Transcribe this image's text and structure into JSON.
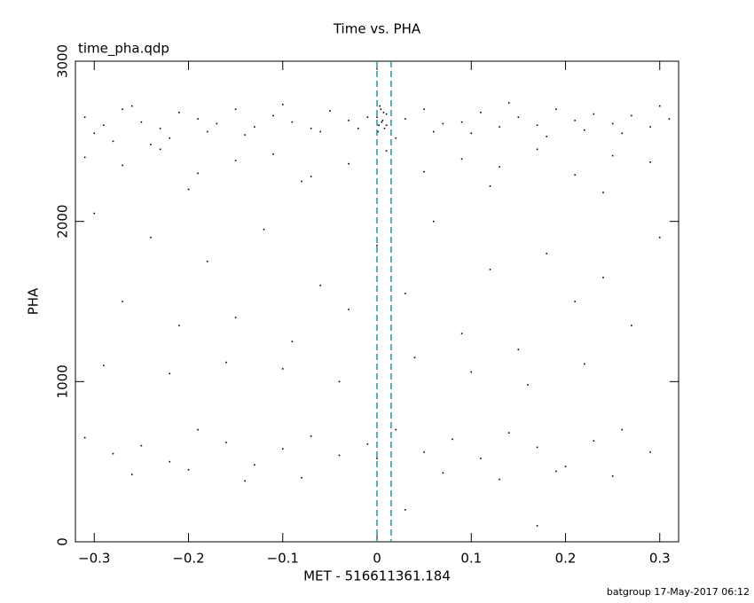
{
  "chart_data": {
    "type": "scatter",
    "title": "Time vs. PHA",
    "subtitle": "time_pha.qdp",
    "x_label": "MET - 516611361.184",
    "y_label": "PHA",
    "footer": "batgroup 17-May-2017 06:12",
    "color": "#000000",
    "vline_color": "#1a9aa6",
    "vlines": [
      0,
      0.015
    ],
    "xlim": [
      -0.32,
      0.32
    ],
    "ylim": [
      0,
      3000
    ],
    "xticks": [
      {
        "value": -0.3,
        "label": "−0.3"
      },
      {
        "value": -0.2,
        "label": "−0.2"
      },
      {
        "value": -0.1,
        "label": "−0.1"
      },
      0,
      0.1,
      0.2,
      0.3
    ],
    "yticks": [
      0,
      1000,
      2000,
      3000
    ],
    "x": [
      -0.31,
      -0.29,
      -0.27,
      -0.25,
      -0.23,
      -0.21,
      -0.19,
      -0.17,
      -0.15,
      -0.13,
      -0.11,
      -0.09,
      -0.07,
      -0.05,
      -0.03,
      -0.01,
      0.01,
      0.03,
      0.05,
      0.07,
      0.09,
      0.11,
      0.13,
      0.15,
      0.17,
      0.19,
      0.21,
      0.23,
      0.25,
      0.27,
      0.29,
      0.31,
      -0.3,
      -0.26,
      -0.22,
      -0.18,
      -0.14,
      -0.1,
      -0.06,
      -0.02,
      0.02,
      0.06,
      0.1,
      0.14,
      0.18,
      0.22,
      0.26,
      0.3,
      -0.28,
      -0.24,
      0.0,
      0.002,
      0.004,
      0.006,
      0.008,
      0.01,
      0.001,
      0.003,
      0.005,
      0.007,
      -0.31,
      -0.27,
      -0.23,
      -0.19,
      -0.15,
      -0.11,
      -0.07,
      -0.03,
      0.01,
      0.05,
      0.09,
      0.13,
      0.17,
      0.21,
      0.25,
      0.29,
      -0.2,
      -0.08,
      0.12,
      0.24,
      -0.3,
      -0.24,
      -0.18,
      -0.12,
      -0.06,
      0.0,
      0.06,
      0.12,
      0.18,
      0.24,
      0.3,
      -0.27,
      -0.21,
      -0.15,
      -0.09,
      -0.03,
      0.03,
      0.09,
      0.15,
      0.21,
      0.27,
      -0.29,
      -0.22,
      -0.16,
      -0.1,
      -0.04,
      0.04,
      0.1,
      0.16,
      0.22,
      -0.31,
      -0.28,
      -0.25,
      -0.22,
      -0.19,
      -0.16,
      -0.13,
      -0.1,
      -0.07,
      -0.04,
      -0.01,
      0.02,
      0.05,
      0.08,
      0.11,
      0.14,
      0.17,
      0.2,
      0.23,
      0.26,
      0.29,
      -0.26,
      -0.2,
      -0.14,
      -0.08,
      0.0,
      0.07,
      0.13,
      0.19,
      0.25,
      0.03,
      0.17
    ],
    "values": [
      2650,
      2600,
      2700,
      2620,
      2580,
      2680,
      2640,
      2610,
      2700,
      2590,
      2660,
      2620,
      2580,
      2690,
      2630,
      2650,
      2600,
      2640,
      2700,
      2610,
      2620,
      2680,
      2590,
      2650,
      2600,
      2700,
      2630,
      2670,
      2610,
      2660,
      2590,
      2640,
      2550,
      2720,
      2520,
      2560,
      2540,
      2730,
      2560,
      2580,
      2520,
      2560,
      2550,
      2740,
      2530,
      2570,
      2550,
      2720,
      2500,
      2480,
      2650,
      2600,
      2700,
      2630,
      2580,
      2670,
      2560,
      2720,
      2620,
      2680,
      2400,
      2350,
      2450,
      2300,
      2380,
      2420,
      2280,
      2360,
      2440,
      2310,
      2390,
      2340,
      2450,
      2290,
      2410,
      2370,
      2200,
      2250,
      2220,
      2180,
      2050,
      1900,
      1750,
      1950,
      1600,
      1850,
      2000,
      1700,
      1800,
      1650,
      1900,
      1500,
      1350,
      1400,
      1250,
      1450,
      1550,
      1300,
      1200,
      1500,
      1350,
      1100,
      1050,
      1120,
      1080,
      1000,
      1150,
      1060,
      980,
      1110,
      650,
      550,
      600,
      500,
      700,
      620,
      480,
      580,
      660,
      540,
      610,
      700,
      560,
      640,
      520,
      680,
      590,
      470,
      630,
      700,
      560,
      420,
      450,
      380,
      400,
      520,
      430,
      390,
      440,
      410,
      200,
      100
    ]
  }
}
